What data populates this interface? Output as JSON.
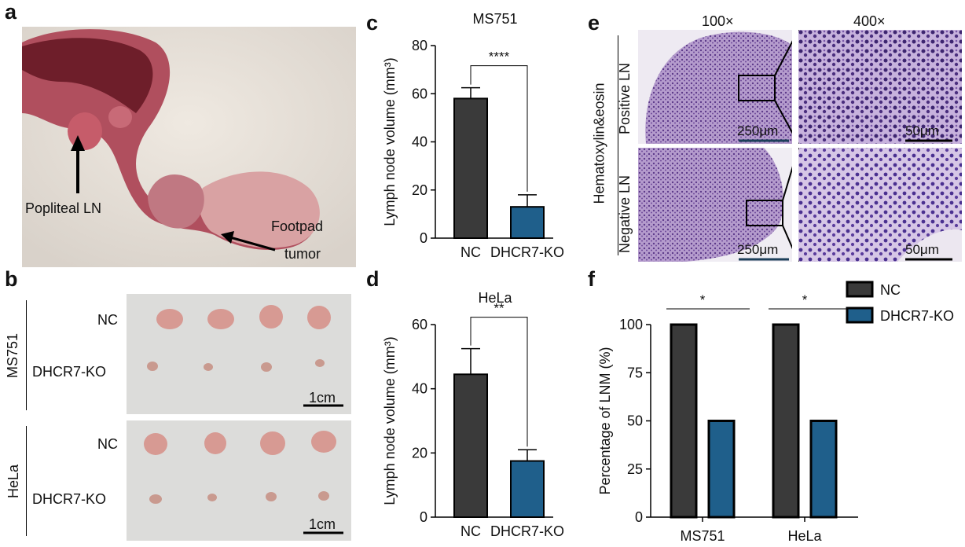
{
  "panels": {
    "a": {
      "letter": "a",
      "labels": {
        "popliteal": "Popliteal LN",
        "footpad": "Footpad",
        "tumor": "tumor"
      }
    },
    "b": {
      "letter": "b",
      "groups": [
        {
          "name": "MS751",
          "row1": "NC",
          "row2": "DHCR7-KO",
          "scale": "1cm"
        },
        {
          "name": "HeLa",
          "row1": "NC",
          "row2": "DHCR7-KO",
          "scale": "1cm"
        }
      ]
    },
    "e": {
      "letter": "e",
      "col1": "100×",
      "col2": "400×",
      "stain": "Hematoxylin&eosin",
      "row1": "Positive LN",
      "row2": "Negative LN",
      "scale_low": "250μm",
      "scale_high": "50μm"
    }
  },
  "colors": {
    "nc": "#3a3a3a",
    "ko": "#1f5f8b",
    "tissue_bg": "#cdb2ad",
    "he_purple": "#7a4a9e"
  },
  "chart_data": [
    {
      "panel": "c",
      "type": "bar",
      "title": "MS751",
      "categories": [
        "NC",
        "DHCR7-KO"
      ],
      "values": [
        58,
        13
      ],
      "errors": [
        4.5,
        5
      ],
      "ylabel": "Lymph node volume (mm³)",
      "ylim": [
        0,
        80
      ],
      "yticks": [
        0,
        20,
        40,
        60,
        80
      ],
      "significance": "****"
    },
    {
      "panel": "d",
      "type": "bar",
      "title": "HeLa",
      "categories": [
        "NC",
        "DHCR7-KO"
      ],
      "values": [
        44.5,
        17.5
      ],
      "errors": [
        8,
        3.5
      ],
      "ylabel": "Lymph node volume (mm³)",
      "ylim": [
        0,
        60
      ],
      "yticks": [
        0,
        20,
        40,
        60
      ],
      "significance": "**"
    },
    {
      "panel": "f",
      "type": "bar",
      "categories": [
        "MS751",
        "HeLa"
      ],
      "series": [
        {
          "name": "NC",
          "values": [
            100,
            100
          ]
        },
        {
          "name": "DHCR7-KO",
          "values": [
            50,
            50
          ]
        }
      ],
      "ylabel": "Percentage of LNM (%)",
      "ylim": [
        0,
        100
      ],
      "yticks": [
        0,
        25,
        50,
        75,
        100
      ],
      "significance": [
        "*",
        "*"
      ],
      "legend": "top-right"
    }
  ]
}
